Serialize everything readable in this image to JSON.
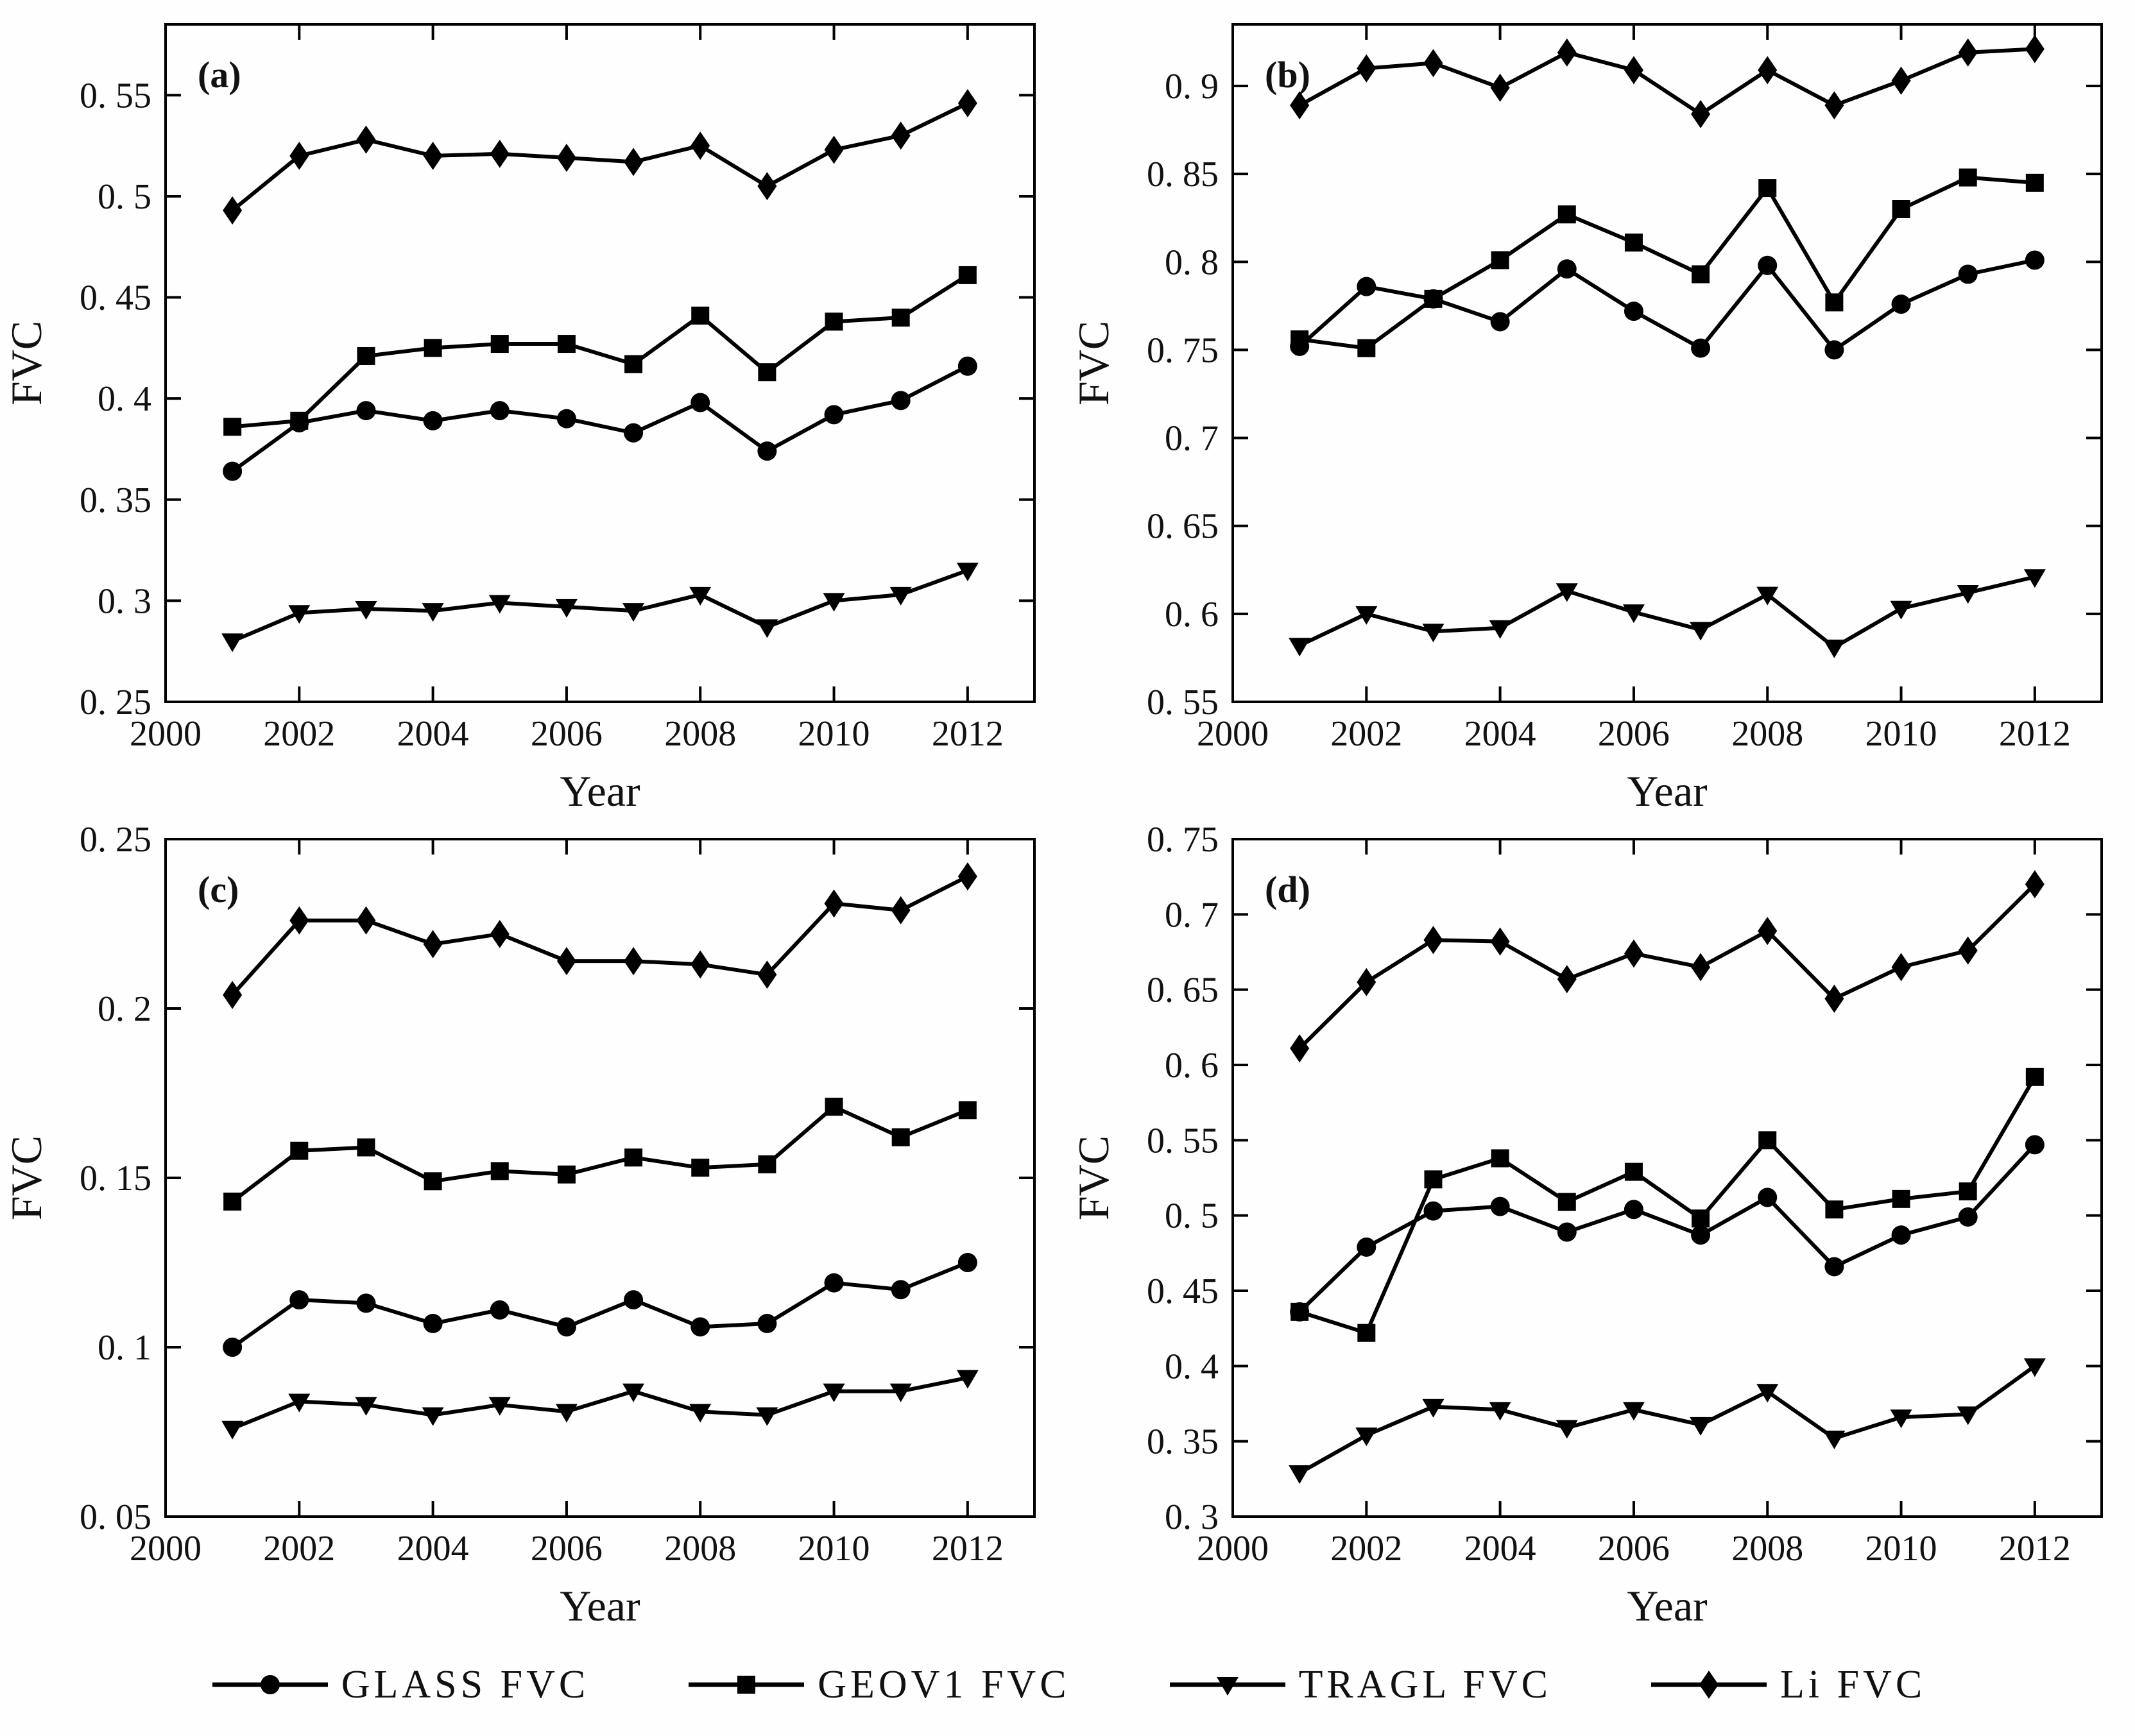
{
  "figure": {
    "xlabel": "Year",
    "ylabel": "FVC",
    "line_color": "#000000",
    "background_color": "#fefefe"
  },
  "legend": {
    "position": "bottom-center",
    "items": [
      {
        "label": "GLASS FVC",
        "marker": "circle",
        "icon": "circle-marker-icon"
      },
      {
        "label": "GEOV1 FVC",
        "marker": "square",
        "icon": "square-marker-icon"
      },
      {
        "label": "TRAGL FVC",
        "marker": "triangle-down",
        "icon": "triangle-down-marker-icon"
      },
      {
        "label": "Li FVC",
        "marker": "diamond",
        "icon": "diamond-marker-icon"
      }
    ]
  },
  "chart_data": [
    {
      "type": "line",
      "panel_label": "(a)",
      "xlabel": "Year",
      "ylabel": "FVC",
      "grid": false,
      "xlim": [
        2000,
        2013
      ],
      "ylim": [
        0.25,
        0.585
      ],
      "xticks": [
        2000,
        2002,
        2004,
        2006,
        2008,
        2010,
        2012
      ],
      "xtick_labels": [
        "2000",
        "2002",
        "2004",
        "2006",
        "2008",
        "2010",
        "2012"
      ],
      "yticks": [
        0.25,
        0.3,
        0.35,
        0.4,
        0.45,
        0.5,
        0.55
      ],
      "ytick_labels": [
        "0. 25",
        "0. 3",
        "0. 35",
        "0. 4",
        "0. 45",
        "0. 5",
        "0. 55"
      ],
      "x": [
        2001,
        2002,
        2003,
        2004,
        2005,
        2006,
        2007,
        2008,
        2009,
        2010,
        2011,
        2012
      ],
      "series": [
        {
          "name": "GLASS FVC",
          "marker": "circle",
          "values": [
            0.364,
            0.388,
            0.394,
            0.389,
            0.394,
            0.39,
            0.383,
            0.398,
            0.374,
            0.392,
            0.399,
            0.416
          ]
        },
        {
          "name": "GEOV1 FVC",
          "marker": "square",
          "values": [
            0.386,
            0.389,
            0.421,
            0.425,
            0.427,
            0.427,
            0.417,
            0.441,
            0.413,
            0.438,
            0.44,
            0.461
          ]
        },
        {
          "name": "TRAGL FVC",
          "marker": "triangle-down",
          "values": [
            0.28,
            0.294,
            0.296,
            0.295,
            0.299,
            0.297,
            0.295,
            0.303,
            0.287,
            0.3,
            0.303,
            0.315
          ]
        },
        {
          "name": "Li FVC",
          "marker": "diamond",
          "values": [
            0.493,
            0.52,
            0.528,
            0.52,
            0.521,
            0.519,
            0.517,
            0.525,
            0.505,
            0.523,
            0.53,
            0.546
          ]
        }
      ]
    },
    {
      "type": "line",
      "panel_label": "(b)",
      "xlabel": "Year",
      "ylabel": "FVC",
      "grid": false,
      "xlim": [
        2000,
        2013
      ],
      "ylim": [
        0.55,
        0.935
      ],
      "xticks": [
        2000,
        2002,
        2004,
        2006,
        2008,
        2010,
        2012
      ],
      "xtick_labels": [
        "2000",
        "2002",
        "2004",
        "2006",
        "2008",
        "2010",
        "2012"
      ],
      "yticks": [
        0.55,
        0.6,
        0.65,
        0.7,
        0.75,
        0.8,
        0.85,
        0.9
      ],
      "ytick_labels": [
        "0. 55",
        "0. 6",
        "0. 65",
        "0. 7",
        "0. 75",
        "0. 8",
        "0. 85",
        "0. 9"
      ],
      "x": [
        2001,
        2002,
        2003,
        2004,
        2005,
        2006,
        2007,
        2008,
        2009,
        2010,
        2011,
        2012
      ],
      "series": [
        {
          "name": "GLASS FVC",
          "marker": "circle",
          "values": [
            0.752,
            0.786,
            0.779,
            0.766,
            0.796,
            0.772,
            0.751,
            0.798,
            0.75,
            0.776,
            0.793,
            0.801
          ]
        },
        {
          "name": "GEOV1 FVC",
          "marker": "square",
          "values": [
            0.756,
            0.751,
            0.779,
            0.801,
            0.827,
            0.811,
            0.793,
            0.842,
            0.777,
            0.83,
            0.848,
            0.845
          ]
        },
        {
          "name": "TRAGL FVC",
          "marker": "triangle-down",
          "values": [
            0.582,
            0.6,
            0.59,
            0.592,
            0.613,
            0.601,
            0.591,
            0.611,
            0.581,
            0.603,
            0.612,
            0.621
          ]
        },
        {
          "name": "Li FVC",
          "marker": "diamond",
          "values": [
            0.889,
            0.91,
            0.913,
            0.899,
            0.919,
            0.909,
            0.884,
            0.909,
            0.889,
            0.903,
            0.919,
            0.921
          ]
        }
      ]
    },
    {
      "type": "line",
      "panel_label": "(c)",
      "xlabel": "Year",
      "ylabel": "FVC",
      "grid": false,
      "xlim": [
        2000,
        2013
      ],
      "ylim": [
        0.05,
        0.25
      ],
      "xticks": [
        2000,
        2002,
        2004,
        2006,
        2008,
        2010,
        2012
      ],
      "xtick_labels": [
        "2000",
        "2002",
        "2004",
        "2006",
        "2008",
        "2010",
        "2012"
      ],
      "yticks": [
        0.05,
        0.1,
        0.15,
        0.2,
        0.25
      ],
      "ytick_labels": [
        "0. 05",
        "0. 1",
        "0. 15",
        "0. 2",
        "0. 25"
      ],
      "x": [
        2001,
        2002,
        2003,
        2004,
        2005,
        2006,
        2007,
        2008,
        2009,
        2010,
        2011,
        2012
      ],
      "series": [
        {
          "name": "GLASS FVC",
          "marker": "circle",
          "values": [
            0.1,
            0.114,
            0.113,
            0.107,
            0.111,
            0.106,
            0.114,
            0.106,
            0.107,
            0.119,
            0.117,
            0.125
          ]
        },
        {
          "name": "GEOV1 FVC",
          "marker": "square",
          "values": [
            0.143,
            0.158,
            0.159,
            0.149,
            0.152,
            0.151,
            0.156,
            0.153,
            0.154,
            0.171,
            0.162,
            0.17
          ]
        },
        {
          "name": "TRAGL FVC",
          "marker": "triangle-down",
          "values": [
            0.076,
            0.084,
            0.083,
            0.08,
            0.083,
            0.081,
            0.087,
            0.081,
            0.08,
            0.087,
            0.087,
            0.091
          ]
        },
        {
          "name": "Li FVC",
          "marker": "diamond",
          "values": [
            0.204,
            0.226,
            0.226,
            0.219,
            0.222,
            0.214,
            0.214,
            0.213,
            0.21,
            0.231,
            0.229,
            0.239
          ]
        }
      ]
    },
    {
      "type": "line",
      "panel_label": "(d)",
      "xlabel": "Year",
      "ylabel": "FVC",
      "grid": false,
      "xlim": [
        2000,
        2013
      ],
      "ylim": [
        0.3,
        0.75
      ],
      "xticks": [
        2000,
        2002,
        2004,
        2006,
        2008,
        2010,
        2012
      ],
      "xtick_labels": [
        "2000",
        "2002",
        "2004",
        "2006",
        "2008",
        "2010",
        "2012"
      ],
      "yticks": [
        0.3,
        0.35,
        0.4,
        0.45,
        0.5,
        0.55,
        0.6,
        0.65,
        0.7,
        0.75
      ],
      "ytick_labels": [
        "0. 3",
        "0. 35",
        "0. 4",
        "0. 45",
        "0. 5",
        "0. 55",
        "0. 6",
        "0. 65",
        "0. 7",
        "0. 75"
      ],
      "x": [
        2001,
        2002,
        2003,
        2004,
        2005,
        2006,
        2007,
        2008,
        2009,
        2010,
        2011,
        2012
      ],
      "series": [
        {
          "name": "GLASS FVC",
          "marker": "circle",
          "values": [
            0.436,
            0.479,
            0.503,
            0.506,
            0.489,
            0.504,
            0.487,
            0.512,
            0.466,
            0.487,
            0.499,
            0.547
          ]
        },
        {
          "name": "GEOV1 FVC",
          "marker": "square",
          "values": [
            0.436,
            0.422,
            0.524,
            0.538,
            0.509,
            0.529,
            0.498,
            0.55,
            0.504,
            0.511,
            0.516,
            0.592
          ]
        },
        {
          "name": "TRAGL FVC",
          "marker": "triangle-down",
          "values": [
            0.329,
            0.354,
            0.373,
            0.371,
            0.359,
            0.371,
            0.361,
            0.383,
            0.352,
            0.366,
            0.368,
            0.4
          ]
        },
        {
          "name": "Li FVC",
          "marker": "diamond",
          "values": [
            0.611,
            0.655,
            0.683,
            0.682,
            0.657,
            0.674,
            0.665,
            0.689,
            0.644,
            0.665,
            0.676,
            0.72
          ]
        }
      ]
    }
  ]
}
